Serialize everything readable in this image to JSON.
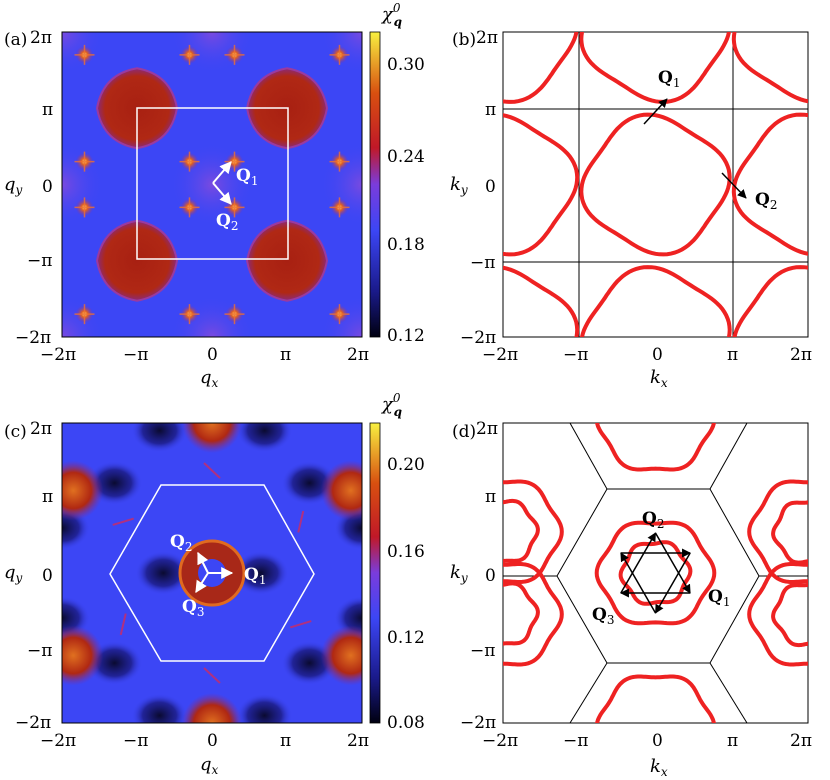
{
  "figure": {
    "ticks_pi": [
      "2π",
      "π",
      "0",
      "−π",
      "−2π"
    ],
    "ticks_x": [
      "−2π",
      "−π",
      "0",
      "π",
      "2π"
    ],
    "panels": [
      {
        "id": "a",
        "label": "(a)",
        "xlabel": "q",
        "xsub": "x",
        "ylabel": "q",
        "ysub": "y",
        "lattice": "square",
        "colorbar": {
          "title": "χ",
          "title_sup": "0",
          "title_sub": "q",
          "ticks": [
            "0.30",
            "0.24",
            "0.18",
            "0.12"
          ],
          "range": [
            0.12,
            0.32
          ]
        },
        "vectors": [
          {
            "bold": "Q",
            "sub": "1"
          },
          {
            "bold": "Q",
            "sub": "2"
          }
        ]
      },
      {
        "id": "b",
        "label": "(b)",
        "xlabel": "k",
        "xsub": "x",
        "ylabel": "k",
        "ysub": "y",
        "lattice": "square",
        "vectors": [
          {
            "bold": "Q",
            "sub": "1"
          },
          {
            "bold": "Q",
            "sub": "2"
          }
        ]
      },
      {
        "id": "c",
        "label": "(c)",
        "xlabel": "q",
        "xsub": "x",
        "ylabel": "q",
        "ysub": "y",
        "lattice": "triangular",
        "colorbar": {
          "title": "χ",
          "title_sup": "0",
          "title_sub": "q",
          "ticks": [
            "0.20",
            "0.16",
            "0.12",
            "0.08"
          ],
          "range": [
            0.08,
            0.22
          ]
        },
        "vectors": [
          {
            "bold": "Q",
            "sub": "2"
          },
          {
            "bold": "Q",
            "sub": "1"
          },
          {
            "bold": "Q",
            "sub": "3"
          }
        ]
      },
      {
        "id": "d",
        "label": "(d)",
        "xlabel": "k",
        "xsub": "x",
        "ylabel": "k",
        "ysub": "y",
        "lattice": "triangular",
        "vectors": [
          {
            "bold": "Q",
            "sub": "2"
          },
          {
            "bold": "Q",
            "sub": "3"
          },
          {
            "bold": "Q",
            "sub": "1"
          }
        ]
      }
    ],
    "colors": {
      "fermi_surface": "#ee2222",
      "map_low": "#0a0a2e",
      "map_mid": "#3c46f5",
      "map_high": "#b02010",
      "map_top": "#f0e020"
    }
  }
}
